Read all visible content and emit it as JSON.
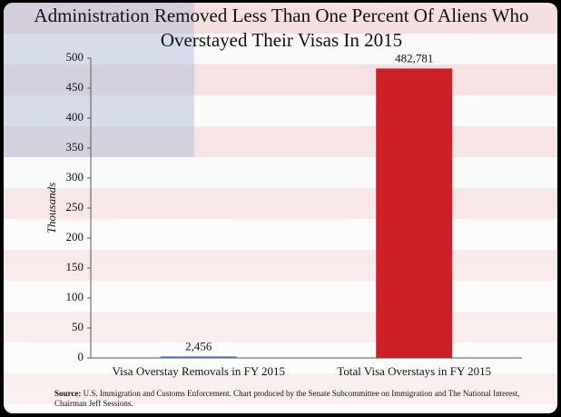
{
  "chart_data": {
    "type": "bar",
    "title": "Administration Removed Less Than One Percent Of Aliens Who Overstayed Their Visas In 2015",
    "y_label": "Thousands",
    "categories": [
      "Visa Overstay Removals in FY 2015",
      "Total Visa Overstays in FY 2015"
    ],
    "values": [
      2.456,
      482.781
    ],
    "value_labels": [
      "2,456",
      "482,781"
    ],
    "colors": [
      "#4a6fc0",
      "#cc1f26"
    ],
    "ylim": [
      0,
      500
    ],
    "yticks": [
      0,
      50,
      100,
      150,
      200,
      250,
      300,
      350,
      400,
      450,
      500
    ],
    "grid": false,
    "source_label": "Source:",
    "source": "U.S. Immigration and Customs Enforcement. Chart produced by the Senate Subcommittee on Immigration and The National Interest, Chairman Jeff Sessions."
  }
}
